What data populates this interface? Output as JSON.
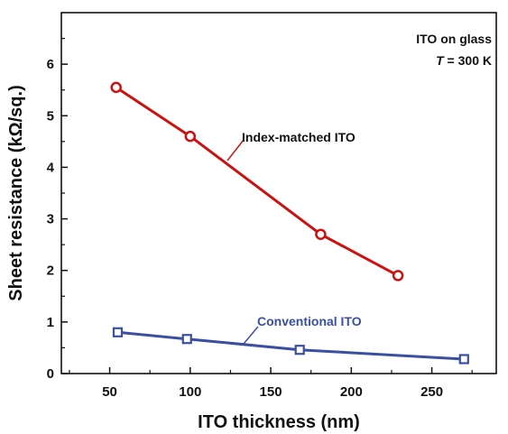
{
  "chart_data": {
    "type": "line",
    "xlabel": "ITO thickness (nm)",
    "ylabel": "Sheet resistance (kΩ/sq.)",
    "xlim": [
      20,
      290
    ],
    "ylim": [
      0,
      7
    ],
    "xticks": [
      50,
      100,
      150,
      200,
      250
    ],
    "yticks": [
      0,
      1,
      2,
      3,
      4,
      5,
      6
    ],
    "grid": false,
    "annotation": {
      "line1": "ITO on glass",
      "line2_var": "T",
      "line2_rest": " = 300 K"
    },
    "series": [
      {
        "name": "Index-matched ITO",
        "color": "#cc1111",
        "marker": "circle",
        "x": [
          54,
          100,
          181,
          229
        ],
        "y": [
          5.55,
          4.6,
          2.7,
          1.9
        ]
      },
      {
        "name": "Conventional ITO",
        "color": "#3a4fa0",
        "marker": "square",
        "x": [
          55,
          98,
          168,
          270
        ],
        "y": [
          0.8,
          0.67,
          0.46,
          0.28
        ]
      }
    ]
  }
}
